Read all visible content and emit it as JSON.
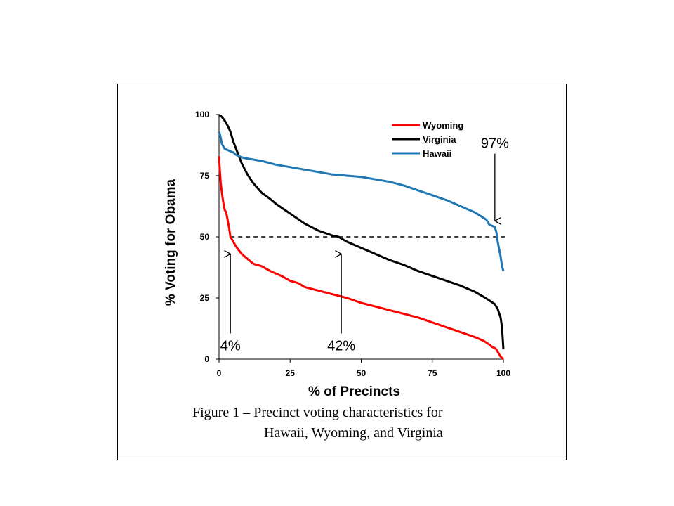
{
  "caption": {
    "line1": "Figure  1 – Precinct voting characteristics for",
    "line2": "Hawaii, Wyoming, and Virginia"
  },
  "chart_data": {
    "type": "line",
    "xlabel": "%  of Precincts",
    "ylabel": "%  Voting for Obama",
    "xlim": [
      0,
      100
    ],
    "ylim": [
      0,
      100
    ],
    "x_ticks": [
      "0",
      "25",
      "50",
      "75",
      "100"
    ],
    "y_ticks": [
      "0",
      "25",
      "50",
      "75",
      "100"
    ],
    "grid": false,
    "legend_position": "top-right",
    "reference_line": {
      "y": 50,
      "style": "dashed"
    },
    "series": [
      {
        "name": "Wyoming",
        "color": "#ff0000",
        "x": [
          0,
          0.3,
          0.6,
          1,
          1.5,
          2,
          2.5,
          3,
          3.5,
          4,
          5,
          6,
          8,
          10,
          12,
          15,
          18,
          20,
          22,
          25,
          28,
          30,
          35,
          40,
          45,
          50,
          55,
          60,
          65,
          70,
          75,
          80,
          85,
          90,
          93,
          95,
          96,
          97,
          97.5,
          98,
          98.5,
          99,
          99.5,
          100
        ],
        "values": [
          83,
          77,
          72,
          68,
          64,
          61,
          60,
          57,
          54,
          50,
          48,
          46,
          43,
          41,
          39,
          38,
          36,
          35,
          34,
          32,
          31,
          29.5,
          28,
          26.5,
          25,
          23,
          21.5,
          20,
          18.5,
          17,
          15,
          13,
          11,
          9,
          7.5,
          6,
          5,
          4.5,
          4,
          3,
          2,
          1,
          0.5,
          0
        ]
      },
      {
        "name": "Virginia",
        "color": "#000000",
        "x": [
          0,
          0.5,
          1,
          2,
          3,
          4,
          5,
          6,
          7,
          8,
          10,
          12,
          15,
          18,
          20,
          25,
          30,
          35,
          40,
          42,
          45,
          50,
          55,
          60,
          65,
          70,
          75,
          80,
          85,
          90,
          93,
          95,
          97,
          98,
          99,
          99.5,
          100
        ],
        "values": [
          100,
          99.5,
          99,
          97.5,
          95.5,
          93,
          89,
          86,
          83,
          80,
          75.5,
          72,
          68,
          65.5,
          63.5,
          59.5,
          55.5,
          52.5,
          50.5,
          50,
          48,
          45.5,
          43,
          40.5,
          38.5,
          36,
          34,
          32,
          30,
          27.5,
          25.5,
          24,
          22.5,
          20.5,
          17,
          13,
          4
        ]
      },
      {
        "name": "Hawaii",
        "color": "#1f77b4",
        "x": [
          0,
          0.3,
          0.7,
          1,
          2,
          3,
          4,
          5,
          6,
          8,
          10,
          15,
          20,
          25,
          30,
          35,
          40,
          45,
          50,
          55,
          60,
          65,
          70,
          75,
          80,
          85,
          88,
          90,
          92,
          94,
          95,
          96,
          97,
          97.5,
          98,
          98.5,
          99,
          99.5,
          100
        ],
        "values": [
          93,
          92,
          90,
          88,
          86,
          85.5,
          85,
          84.5,
          83.5,
          82.5,
          82,
          81,
          79.5,
          78.5,
          77.5,
          76.5,
          75.5,
          75,
          74.5,
          73.5,
          72.5,
          71,
          69,
          67,
          65,
          62.5,
          61,
          60,
          58.5,
          57,
          55,
          54.5,
          54,
          52,
          48,
          45,
          42,
          38,
          36
        ]
      }
    ],
    "annotations": [
      {
        "text": "4%",
        "x": 4,
        "arrow_from_y": 10.5,
        "arrow_to_y": 43
      },
      {
        "text": "42%",
        "x": 43,
        "arrow_from_y": 10.5,
        "arrow_to_y": 43
      },
      {
        "text": "97%",
        "x": 97,
        "arrow_from_y": 84,
        "arrow_to_y": 56.5
      }
    ]
  }
}
